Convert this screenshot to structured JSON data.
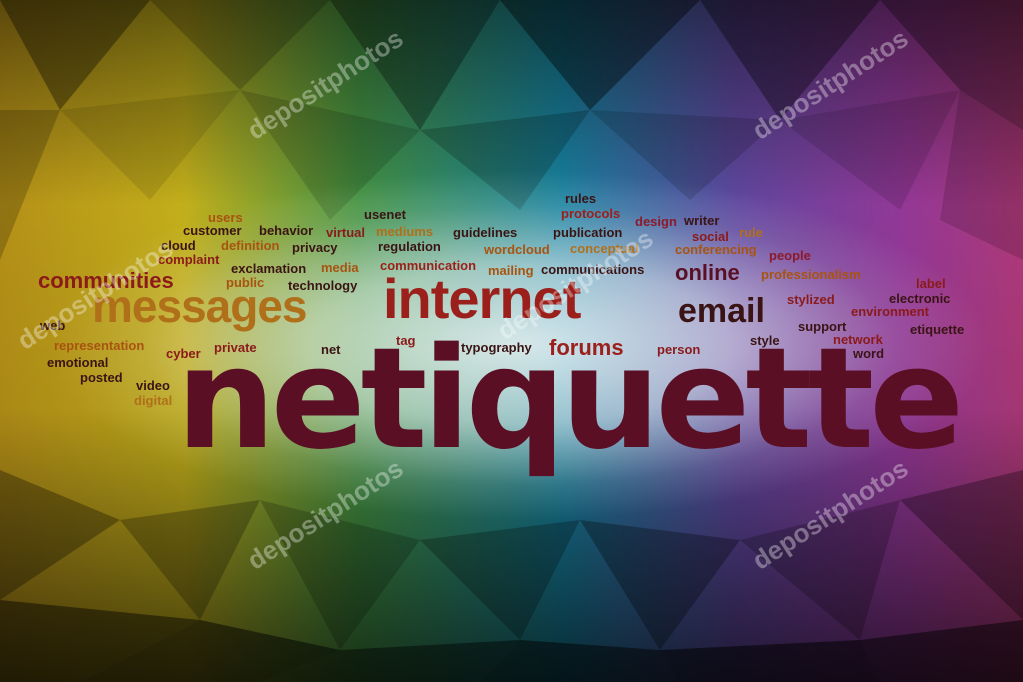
{
  "main_word": {
    "text": "netiquette",
    "color": "#5a0f24"
  },
  "words": [
    {
      "text": "rules",
      "color": "#3a1414",
      "size": 13
    },
    {
      "text": "protocols",
      "color": "#9b1f1a",
      "size": 13
    },
    {
      "text": "users",
      "color": "#a85410",
      "size": 13
    },
    {
      "text": "usenet",
      "color": "#3a1414",
      "size": 13
    },
    {
      "text": "design",
      "color": "#8b1a2a",
      "size": 13
    },
    {
      "text": "writer",
      "color": "#3a1414",
      "size": 13
    },
    {
      "text": "customer",
      "color": "#3a1414",
      "size": 13
    },
    {
      "text": "behavior",
      "color": "#3a1414",
      "size": 13
    },
    {
      "text": "virtual",
      "color": "#8b1a1a",
      "size": 13
    },
    {
      "text": "mediums",
      "color": "#b0701a",
      "size": 13
    },
    {
      "text": "guidelines",
      "color": "#3a1414",
      "size": 13
    },
    {
      "text": "publication",
      "color": "#3a1414",
      "size": 13
    },
    {
      "text": "social",
      "color": "#8b1a1a",
      "size": 13
    },
    {
      "text": "rule",
      "color": "#b0701a",
      "size": 13
    },
    {
      "text": "cloud",
      "color": "#3a1414",
      "size": 13
    },
    {
      "text": "definition",
      "color": "#a85410",
      "size": 13
    },
    {
      "text": "privacy",
      "color": "#3a1414",
      "size": 13
    },
    {
      "text": "regulation",
      "color": "#3a1414",
      "size": 13
    },
    {
      "text": "wordcloud",
      "color": "#a85410",
      "size": 13
    },
    {
      "text": "conceptual",
      "color": "#b0701a",
      "size": 13
    },
    {
      "text": "conferencing",
      "color": "#a85410",
      "size": 13
    },
    {
      "text": "complaint",
      "color": "#8b1a1a",
      "size": 13
    },
    {
      "text": "people",
      "color": "#8b1a2a",
      "size": 13
    },
    {
      "text": "exclamation",
      "color": "#3a1414",
      "size": 13
    },
    {
      "text": "media",
      "color": "#a85410",
      "size": 13
    },
    {
      "text": "communication",
      "color": "#9b1f1a",
      "size": 13
    },
    {
      "text": "mailing",
      "color": "#a85410",
      "size": 13
    },
    {
      "text": "communications",
      "color": "#3a1414",
      "size": 13
    },
    {
      "text": "professionalism",
      "color": "#a85410",
      "size": 13
    },
    {
      "text": "communities",
      "color": "#8b1a1a",
      "size": 22
    },
    {
      "text": "online",
      "color": "#5a0f24",
      "size": 22
    },
    {
      "text": "public",
      "color": "#a85410",
      "size": 13
    },
    {
      "text": "technology",
      "color": "#3a1414",
      "size": 13
    },
    {
      "text": "label",
      "color": "#8b1a1a",
      "size": 13
    },
    {
      "text": "electronic",
      "color": "#3a1414",
      "size": 13
    },
    {
      "text": "stylized",
      "color": "#8b1a1a",
      "size": 13
    },
    {
      "text": "environment",
      "color": "#8b1a1a",
      "size": 13
    },
    {
      "text": "web",
      "color": "#3a1414",
      "size": 13
    },
    {
      "text": "messages",
      "color": "#b0701a",
      "size": 46
    },
    {
      "text": "internet",
      "color": "#9b1f1a",
      "size": 56
    },
    {
      "text": "email",
      "color": "#3a1414",
      "size": 34
    },
    {
      "text": "support",
      "color": "#3a1414",
      "size": 13
    },
    {
      "text": "etiquette",
      "color": "#3a1414",
      "size": 13
    },
    {
      "text": "tag",
      "color": "#8b1a1a",
      "size": 13
    },
    {
      "text": "network",
      "color": "#8b1a1a",
      "size": 13
    },
    {
      "text": "representation",
      "color": "#a85410",
      "size": 13
    },
    {
      "text": "style",
      "color": "#3a1414",
      "size": 13
    },
    {
      "text": "typography",
      "color": "#3a1414",
      "size": 13
    },
    {
      "text": "forums",
      "color": "#9b1f1a",
      "size": 22
    },
    {
      "text": "person",
      "color": "#8b1a1a",
      "size": 13
    },
    {
      "text": "cyber",
      "color": "#8b1a1a",
      "size": 13
    },
    {
      "text": "private",
      "color": "#8b1a1a",
      "size": 13
    },
    {
      "text": "net",
      "color": "#3a1414",
      "size": 13
    },
    {
      "text": "word",
      "color": "#3a1414",
      "size": 13
    },
    {
      "text": "emotional",
      "color": "#3a1414",
      "size": 13
    },
    {
      "text": "posted",
      "color": "#3a1414",
      "size": 13
    },
    {
      "text": "video",
      "color": "#3a1414",
      "size": 13
    },
    {
      "text": "digital",
      "color": "#b0701a",
      "size": 13
    }
  ],
  "watermark": {
    "text": "depositphotos"
  }
}
